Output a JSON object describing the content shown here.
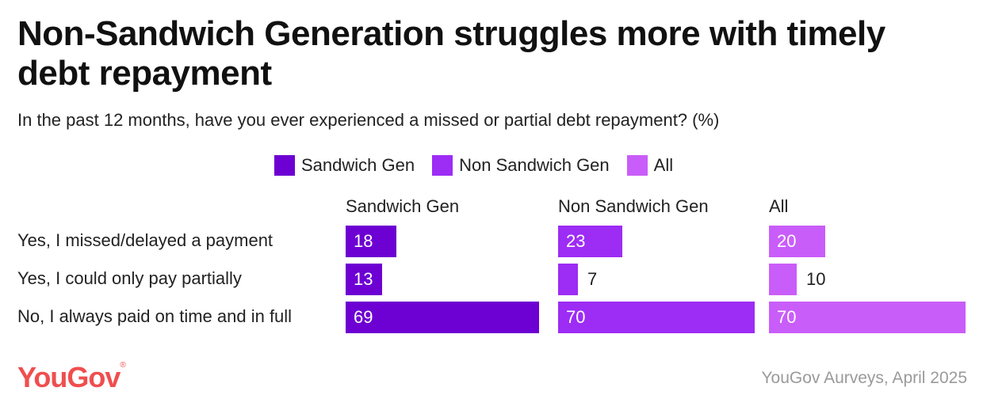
{
  "title": "Non-Sandwich Generation struggles more with timely debt repayment",
  "subtitle": "In the past 12 months, have you ever experienced a missed or partial debt repayment? (%)",
  "brand": {
    "logo_text": "YouGov",
    "logo_mark": "®",
    "logo_color": "#f04e4e"
  },
  "source": "YouGov Aurveys, April 2025",
  "chart_data": {
    "type": "bar",
    "orientation": "horizontal",
    "layout": "small-multiples",
    "title": "Non-Sandwich Generation struggles more with timely debt repayment",
    "subtitle": "In the past 12 months, have you ever experienced a missed or partial debt repayment? (%)",
    "xlim": [
      0,
      70
    ],
    "grid": false,
    "legend": "top-center",
    "categories": [
      "Yes, I missed/delayed a payment",
      "Yes, I could only pay partially",
      "No, I always paid on time and in full"
    ],
    "series": [
      {
        "name": "Sandwich Gen",
        "color": "#6d00d2",
        "values": [
          18,
          13,
          69
        ]
      },
      {
        "name": "Non Sandwich Gen",
        "color": "#9d2cf5",
        "values": [
          23,
          7,
          70
        ]
      },
      {
        "name": "All",
        "color": "#c95df9",
        "values": [
          20,
          10,
          70
        ]
      }
    ]
  }
}
